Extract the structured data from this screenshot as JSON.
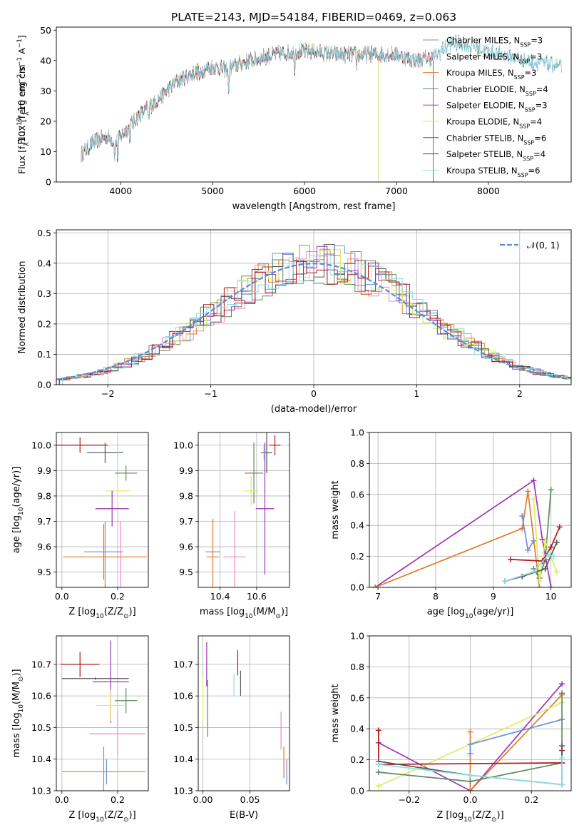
{
  "figure_title": "PLATE=2143, MJD=54184, FIBERID=0469, z=0.063",
  "colors": {
    "chabrier_miles": "#6f8fd8",
    "salpeter_miles": "#e88ac0",
    "kroupa_miles": "#e07a2e",
    "chabrier_elodie": "#5f8a62",
    "salpeter_elodie": "#9e35b5",
    "kroupa_elodie": "#d8ee60",
    "chabrier_stelib": "#555555",
    "salpeter_stelib": "#b01818",
    "kroupa_stelib": "#8fdde8",
    "normal": "#5a8ad8",
    "grid": "#b0b0b0"
  },
  "chart_data": [
    {
      "id": "spectrum",
      "type": "line",
      "title": "PLATE=2143, MJD=54184, FIBERID=0469, z=0.063",
      "xlabel": "wavelength [Angstrom, rest frame]",
      "ylabel_parts": {
        "a": "Flux [f",
        "sub": "λ",
        "b": "10",
        "sup1": "−17",
        "c": " erg cm",
        "sup2": "−2",
        "d": " s",
        "sup3": "−1",
        "e": " A",
        "sup4": "−1",
        "f": "]"
      },
      "xlim": [
        3300,
        8900
      ],
      "ylim": [
        0,
        51
      ],
      "xticks": [
        4000,
        5000,
        6000,
        7000,
        8000
      ],
      "yticks": [
        0,
        10,
        20,
        30,
        40,
        50
      ],
      "grid": false,
      "legend_position": "right",
      "series": [
        {
          "key": "chabrier_miles",
          "label": "Chabrier MILES, N",
          "sub": "SSP",
          "suffix": "=3",
          "end": 7400
        },
        {
          "key": "salpeter_miles",
          "label": "Salpeter MILES, N",
          "sub": "SSP",
          "suffix": "=3",
          "end": 7400
        },
        {
          "key": "kroupa_miles",
          "label": "Kroupa MILES, N",
          "sub": "SSP",
          "suffix": "=3",
          "end": 7400
        },
        {
          "key": "chabrier_elodie",
          "label": "Chabrier ELODIE, N",
          "sub": "SSP",
          "suffix": "=4",
          "end": 6800
        },
        {
          "key": "salpeter_elodie",
          "label": "Salpeter ELODIE, N",
          "sub": "SSP",
          "suffix": "=3",
          "end": 6800
        },
        {
          "key": "kroupa_elodie",
          "label": "Kroupa ELODIE, N",
          "sub": "SSP",
          "suffix": "=4",
          "end": 6800
        },
        {
          "key": "chabrier_stelib",
          "label": "Chabrier STELIB, N",
          "sub": "SSP",
          "suffix": "=6",
          "end": 8800
        },
        {
          "key": "salpeter_stelib",
          "label": "Salpeter STELIB, N",
          "sub": "SSP",
          "suffix": "=4",
          "end": 7400
        },
        {
          "key": "kroupa_stelib",
          "label": "Kroupa STELIB, N",
          "sub": "SSP",
          "suffix": "=6",
          "end": 8800
        }
      ],
      "continuum": [
        [
          3570,
          9
        ],
        [
          3700,
          13
        ],
        [
          3850,
          15
        ],
        [
          3950,
          13
        ],
        [
          4000,
          15
        ],
        [
          4200,
          22
        ],
        [
          4400,
          27
        ],
        [
          4600,
          33
        ],
        [
          4800,
          36
        ],
        [
          5000,
          38
        ],
        [
          5150,
          37
        ],
        [
          5300,
          39
        ],
        [
          5600,
          41.5
        ],
        [
          5900,
          43
        ],
        [
          6100,
          43
        ],
        [
          6300,
          42
        ],
        [
          6600,
          42
        ],
        [
          6800,
          42
        ],
        [
          7000,
          42
        ],
        [
          7200,
          40
        ],
        [
          7400,
          41
        ],
        [
          7600,
          46
        ],
        [
          7800,
          45
        ],
        [
          8000,
          43
        ],
        [
          8400,
          40
        ],
        [
          8800,
          38
        ]
      ],
      "noise_amp": 2.5,
      "dips": [
        [
          3934,
          4
        ],
        [
          3969,
          5
        ],
        [
          4101,
          3
        ],
        [
          4305,
          4
        ],
        [
          4861,
          3
        ],
        [
          5175,
          6
        ],
        [
          5892,
          5
        ],
        [
          6563,
          3
        ]
      ]
    },
    {
      "id": "residual_histogram",
      "type": "histogram",
      "xlabel": "(data-model)/error",
      "ylabel": "Normed distribution",
      "xlim": [
        -2.5,
        2.5
      ],
      "ylim": [
        0,
        0.51
      ],
      "xticks": [
        -2,
        -1,
        0,
        1,
        2
      ],
      "yticks": [
        0,
        0.1,
        0.2,
        0.3,
        0.4,
        0.5
      ],
      "grid": true,
      "bin_width": 0.1,
      "legend": {
        "label": "𝒩(0, 1)",
        "position": "top-right"
      },
      "reference_curve": "standard normal pdf"
    },
    {
      "id": "age_vs_Z",
      "type": "errorbar",
      "xlabel_parts": {
        "a": "Z [log",
        "sub": "10",
        "b": "(Z/Z",
        "sub2": "⊙",
        "c": ")]"
      },
      "ylabel_parts": {
        "a": "age  [log",
        "sub": "10",
        "b": "(age/yr)]"
      },
      "xlim": [
        -0.02,
        0.31
      ],
      "ylim": [
        9.44,
        10.05
      ],
      "xticks": [
        0.0,
        0.2
      ],
      "yticks": [
        9.5,
        9.6,
        9.7,
        9.8,
        9.9,
        10.0
      ],
      "grid": true,
      "points": [
        {
          "key": "salpeter_stelib",
          "x": 0.065,
          "xerr": 0.1,
          "y": 10.0,
          "yerr": 0.03
        },
        {
          "key": "chabrier_stelib",
          "x": 0.155,
          "xerr": 0.065,
          "y": 9.97,
          "yerr": 0.04
        },
        {
          "key": "kroupa_stelib",
          "x": 0.2,
          "xerr": 0.0,
          "y": 9.97,
          "yerr": 0.03
        },
        {
          "key": "chabrier_elodie",
          "x": 0.23,
          "xerr": 0.04,
          "y": 9.89,
          "yerr": 0.03
        },
        {
          "key": "kroupa_elodie",
          "x": 0.2,
          "xerr": 0.045,
          "y": 9.82,
          "yerr": 0.06
        },
        {
          "key": "salpeter_elodie",
          "x": 0.18,
          "xerr": 0.06,
          "y": 9.75,
          "yerr": 0.07
        },
        {
          "key": "chabrier_miles",
          "x": 0.15,
          "xerr": 0.07,
          "y": 9.58,
          "yerr": 0.11
        },
        {
          "key": "salpeter_miles",
          "x": 0.21,
          "xerr": 0.0,
          "y": 9.56,
          "yerr": 0.14
        },
        {
          "key": "kroupa_miles",
          "x": 0.155,
          "xerr": 0.15,
          "y": 9.56,
          "yerr": 0.14
        }
      ]
    },
    {
      "id": "age_vs_mass",
      "type": "errorbar",
      "xlabel_parts": {
        "a": "mass [log",
        "sub": "10",
        "b": "(M/M",
        "sub2": "⊙",
        "c": ")]"
      },
      "xlim": [
        10.28,
        10.78
      ],
      "ylim": [
        9.44,
        10.05
      ],
      "xticks": [
        10.4,
        10.6
      ],
      "yticks": [
        9.5,
        9.6,
        9.7,
        9.8,
        9.9,
        10.0
      ],
      "grid": true,
      "points": [
        {
          "key": "salpeter_stelib",
          "x": 10.7,
          "xerr": 0.03,
          "y": 10.0,
          "yerr": 0.04
        },
        {
          "key": "chabrier_stelib",
          "x": 10.655,
          "xerr": 0.03,
          "y": 9.97,
          "yerr": 0.08
        },
        {
          "key": "kroupa_stelib",
          "x": 10.64,
          "xerr": 0.0,
          "y": 9.97,
          "yerr": 0.03
        },
        {
          "key": "chabrier_elodie",
          "x": 10.585,
          "xerr": 0.05,
          "y": 9.89,
          "yerr": 0.12
        },
        {
          "key": "kroupa_elodie",
          "x": 10.57,
          "xerr": 0.04,
          "y": 9.82,
          "yerr": 0.06
        },
        {
          "key": "salpeter_elodie",
          "x": 10.645,
          "xerr": 0.05,
          "y": 9.75,
          "yerr": 0.26
        },
        {
          "key": "chabrier_miles",
          "x": 10.36,
          "xerr": 0.04,
          "y": 9.58,
          "yerr": 0.0
        },
        {
          "key": "salpeter_miles",
          "x": 10.48,
          "xerr": 0.06,
          "y": 9.56,
          "yerr": 0.18
        },
        {
          "key": "kroupa_miles",
          "x": 10.36,
          "xerr": 0.035,
          "y": 9.56,
          "yerr": 0.15
        }
      ]
    },
    {
      "id": "weight_vs_age",
      "type": "line",
      "xlabel_parts": {
        "a": "age  [log",
        "sub": "10",
        "b": "(age/yr)]"
      },
      "ylabel": "mass weight",
      "xlim": [
        6.85,
        10.35
      ],
      "ylim": [
        0,
        1.0
      ],
      "xticks": [
        7,
        8,
        9,
        10
      ],
      "yticks": [
        0,
        0.2,
        0.4,
        0.6,
        0.8,
        1.0
      ],
      "grid": true,
      "series": [
        {
          "key": "salpeter_elodie",
          "points": [
            [
              6.95,
              0.0
            ],
            [
              9.7,
              0.69
            ],
            [
              9.85,
              0.31
            ],
            [
              10.0,
              0.0
            ]
          ]
        },
        {
          "key": "kroupa_miles",
          "points": [
            [
              6.95,
              0.0
            ],
            [
              9.5,
              0.38
            ],
            [
              9.6,
              0.62
            ],
            [
              9.8,
              0.0
            ]
          ]
        },
        {
          "key": "chabrier_miles",
          "points": [
            [
              9.5,
              0.46
            ],
            [
              9.6,
              0.24
            ],
            [
              9.7,
              0.3
            ]
          ]
        },
        {
          "key": "chabrier_elodie",
          "points": [
            [
              9.7,
              0.12
            ],
            [
              9.8,
              0.06
            ],
            [
              9.9,
              0.18
            ],
            [
              10.0,
              0.63
            ]
          ]
        },
        {
          "key": "kroupa_elodie",
          "points": [
            [
              9.7,
              0.57
            ],
            [
              9.8,
              0.04
            ],
            [
              9.9,
              0.3
            ],
            [
              10.1,
              0.1
            ]
          ]
        },
        {
          "key": "salpeter_stelib",
          "points": [
            [
              9.3,
              0.18
            ],
            [
              9.85,
              0.17
            ],
            [
              10.0,
              0.26
            ],
            [
              10.15,
              0.39
            ]
          ]
        },
        {
          "key": "chabrier_stelib",
          "points": [
            [
              9.2,
              0.04
            ],
            [
              9.5,
              0.07
            ],
            [
              9.9,
              0.12
            ],
            [
              10.1,
              0.29
            ]
          ]
        },
        {
          "key": "kroupa_stelib",
          "points": [
            [
              9.2,
              0.04
            ],
            [
              9.7,
              0.1
            ],
            [
              9.95,
              0.21
            ],
            [
              10.05,
              0.2
            ]
          ]
        }
      ]
    },
    {
      "id": "mass_vs_Z",
      "type": "errorbar",
      "xlabel_parts": {
        "a": "Z [log",
        "sub": "10",
        "b": "(Z/Z",
        "sub2": "⊙",
        "c": ")]"
      },
      "ylabel_parts": {
        "a": "mass [log",
        "sub": "10",
        "b": "(M/M",
        "sub2": "⊙",
        "c": ")]"
      },
      "xlim": [
        -0.02,
        0.31
      ],
      "ylim": [
        10.3,
        10.79
      ],
      "xticks": [
        0.0,
        0.2
      ],
      "yticks": [
        10.3,
        10.4,
        10.5,
        10.6,
        10.7
      ],
      "grid": true,
      "points": [
        {
          "key": "salpeter_stelib",
          "x": 0.065,
          "xerr": 0.07,
          "y": 10.7,
          "yerr": 0.04
        },
        {
          "key": "chabrier_stelib",
          "x": 0.12,
          "xerr": 0.12,
          "y": 10.655,
          "yerr": 0.0
        },
        {
          "key": "salpeter_elodie",
          "x": 0.175,
          "xerr": 0.065,
          "y": 10.645,
          "yerr": 0.13
        },
        {
          "key": "chabrier_elodie",
          "x": 0.23,
          "xerr": 0.04,
          "y": 10.585,
          "yerr": 0.04
        },
        {
          "key": "kroupa_elodie",
          "x": 0.175,
          "xerr": 0.05,
          "y": 10.57,
          "yerr": 0.05
        },
        {
          "key": "salpeter_miles",
          "x": 0.2,
          "xerr": 0.1,
          "y": 10.48,
          "yerr": 0.07
        },
        {
          "key": "chabrier_miles",
          "x": 0.16,
          "xerr": 0.0,
          "y": 10.36,
          "yerr": 0.04
        },
        {
          "key": "kroupa_miles",
          "x": 0.15,
          "xerr": 0.15,
          "y": 10.36,
          "yerr": 0.08
        }
      ]
    },
    {
      "id": "mass_vs_ebv",
      "type": "errorbar",
      "xlabel": "E(B-V)",
      "xlim": [
        -0.005,
        0.092
      ],
      "ylim": [
        10.3,
        10.79
      ],
      "xticks": [
        0.0,
        0.05
      ],
      "yticks": [
        10.3,
        10.4,
        10.5,
        10.6,
        10.7
      ],
      "grid": true,
      "points": [
        {
          "key": "salpeter_elodie",
          "x": 0.004,
          "xerr": 0.0,
          "y": 10.7,
          "yerr": 0.07
        },
        {
          "key": "salpeter_stelib",
          "x": 0.037,
          "xerr": 0.0,
          "y": 10.705,
          "yerr": 0.04
        },
        {
          "key": "chabrier_stelib",
          "x": 0.04,
          "xerr": 0.0,
          "y": 10.64,
          "yerr": 0.04
        },
        {
          "key": "kroupa_stelib",
          "x": 0.033,
          "xerr": 0.0,
          "y": 10.635,
          "yerr": 0.035
        },
        {
          "key": "kroupa_elodie",
          "x": 0.0,
          "xerr": 0.0,
          "y": 10.59,
          "yerr": 0.07
        },
        {
          "key": "chabrier_elodie",
          "x": 0.005,
          "xerr": 0.0,
          "y": 10.56,
          "yerr": 0.09
        },
        {
          "key": "salpeter_miles",
          "x": 0.083,
          "xerr": 0.0,
          "y": 10.49,
          "yerr": 0.06
        },
        {
          "key": "kroupa_miles",
          "x": 0.086,
          "xerr": 0.0,
          "y": 10.39,
          "yerr": 0.05
        },
        {
          "key": "chabrier_miles",
          "x": 0.089,
          "xerr": 0.0,
          "y": 10.36,
          "yerr": 0.04
        }
      ]
    },
    {
      "id": "weight_vs_Z",
      "type": "line",
      "xlabel_parts": {
        "a": "Z [log",
        "sub": "10",
        "b": "(Z/Z",
        "sub2": "⊙",
        "c": ")]"
      },
      "ylabel": "mass weight",
      "xlim": [
        -0.33,
        0.33
      ],
      "ylim": [
        0,
        1.0
      ],
      "xticks": [
        -0.2,
        0.0,
        0.2
      ],
      "yticks": [
        0,
        0.2,
        0.4,
        0.6,
        0.8,
        1.0
      ],
      "grid": true,
      "series": [
        {
          "key": "salpeter_elodie",
          "points": [
            [
              -0.3,
              0.31
            ],
            [
              0.0,
              0.0
            ],
            [
              0.3,
              0.69
            ]
          ]
        },
        {
          "key": "kroupa_miles",
          "points": [
            [
              0.0,
              0.38
            ],
            [
              0.0,
              0.0
            ],
            [
              0.3,
              0.62
            ]
          ]
        },
        {
          "key": "kroupa_elodie",
          "points": [
            [
              -0.3,
              0.03
            ],
            [
              0.0,
              0.3
            ],
            [
              0.3,
              0.57
            ]
          ]
        },
        {
          "key": "chabrier_miles",
          "points": [
            [
              0.0,
              0.24
            ],
            [
              0.0,
              0.3
            ],
            [
              0.3,
              0.46
            ]
          ]
        },
        {
          "key": "chabrier_elodie",
          "points": [
            [
              -0.3,
              0.12
            ],
            [
              0.0,
              0.06
            ],
            [
              0.3,
              0.18
            ],
            [
              0.3,
              0.63
            ]
          ]
        },
        {
          "key": "salpeter_stelib",
          "points": [
            [
              -0.3,
              0.39
            ],
            [
              -0.3,
              0.17
            ],
            [
              0.3,
              0.18
            ],
            [
              0.3,
              0.26
            ]
          ]
        },
        {
          "key": "chabrier_stelib",
          "points": [
            [
              -0.3,
              0.19
            ],
            [
              0.0,
              0.1
            ],
            [
              0.3,
              0.04
            ],
            [
              0.3,
              0.29
            ]
          ]
        },
        {
          "key": "kroupa_stelib",
          "points": [
            [
              -0.3,
              0.17
            ],
            [
              0.0,
              0.1
            ],
            [
              0.3,
              0.04
            ],
            [
              0.3,
              0.21
            ]
          ]
        }
      ]
    }
  ]
}
